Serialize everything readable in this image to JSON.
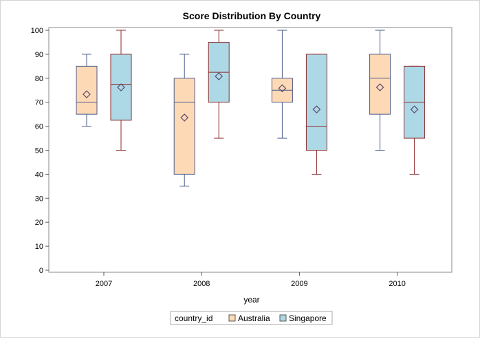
{
  "chart_data": {
    "type": "box",
    "title": "Score Distribution By Country",
    "xlabel": "year",
    "ylabel": "",
    "ylim": [
      0,
      100
    ],
    "yticks": [
      0,
      10,
      20,
      30,
      40,
      50,
      60,
      70,
      80,
      90,
      100
    ],
    "categories": [
      "2007",
      "2008",
      "2009",
      "2010"
    ],
    "legend": {
      "title": "country_id",
      "placement": "bottom"
    },
    "series": [
      {
        "name": "Australia",
        "fill": "#fdd9b5",
        "stroke": "#4a5a8a",
        "boxes": [
          {
            "category": "2007",
            "min": 60,
            "q1": 65,
            "median": 70,
            "q3": 85,
            "max": 90,
            "mean": 73.3
          },
          {
            "category": "2008",
            "min": 35,
            "q1": 40,
            "median": 70,
            "q3": 80,
            "max": 90,
            "mean": 63.6
          },
          {
            "category": "2009",
            "min": 55,
            "q1": 70,
            "median": 75,
            "q3": 80,
            "max": 100,
            "mean": 75.8
          },
          {
            "category": "2010",
            "min": 50,
            "q1": 65,
            "median": 80,
            "q3": 90,
            "max": 100,
            "mean": 76.2
          }
        ]
      },
      {
        "name": "Singapore",
        "fill": "#add8e6",
        "stroke": "#8b2a2a",
        "boxes": [
          {
            "category": "2007",
            "min": 50,
            "q1": 62.5,
            "median": 77.5,
            "q3": 90,
            "max": 100,
            "mean": 76.2
          },
          {
            "category": "2008",
            "min": 55,
            "q1": 70,
            "median": 82.5,
            "q3": 95,
            "max": 100,
            "mean": 80.8
          },
          {
            "category": "2009",
            "min": 40,
            "q1": 50,
            "median": 60,
            "q3": 90,
            "max": 90,
            "mean": 67.0
          },
          {
            "category": "2010",
            "min": 40,
            "q1": 55,
            "median": 70,
            "q3": 85,
            "max": 85,
            "mean": 67.0
          }
        ]
      }
    ]
  }
}
